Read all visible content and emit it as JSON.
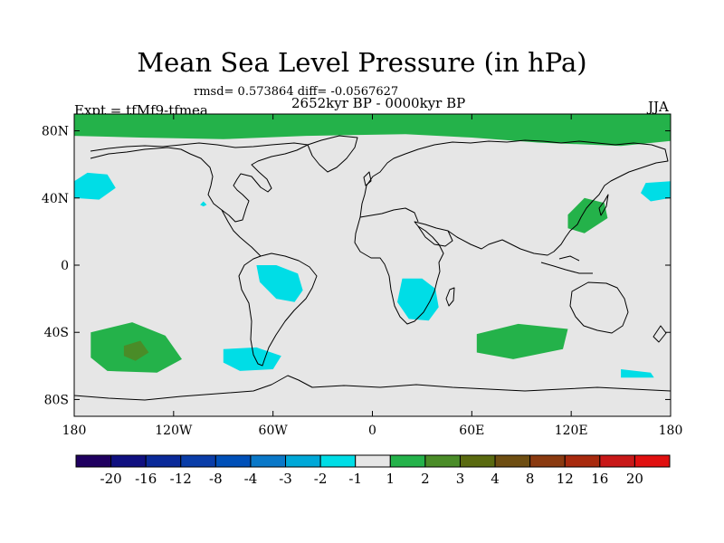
{
  "title": "Mean Sea Level Pressure (in hPa)",
  "stats": "rmsd= 0.573864 diff= -0.0567627",
  "period": "2652kyr BP - 0000kyr BP",
  "experiment": "Expt = tfMf9-tfmea",
  "season": "JJA",
  "chart_data": {
    "type": "map",
    "projection": "cylindrical-equidistant",
    "lon_range": [
      -180,
      180
    ],
    "lat_range": [
      -90,
      90
    ],
    "x_ticks": [
      {
        "lon": -180,
        "label": "180"
      },
      {
        "lon": -120,
        "label": "120W"
      },
      {
        "lon": -60,
        "label": "60W"
      },
      {
        "lon": 0,
        "label": "0"
      },
      {
        "lon": 60,
        "label": "60E"
      },
      {
        "lon": 120,
        "label": "120E"
      },
      {
        "lon": 180,
        "label": "180"
      }
    ],
    "y_ticks": [
      {
        "lat": 80,
        "label": "80N"
      },
      {
        "lat": 40,
        "label": "40N"
      },
      {
        "lat": 0,
        "label": "0"
      },
      {
        "lat": -40,
        "label": "40S"
      },
      {
        "lat": -80,
        "label": "80S"
      }
    ],
    "colorbar": {
      "labels": [
        "-20",
        "-16",
        "-12",
        "-8",
        "-4",
        "-3",
        "-2",
        "-1",
        "1",
        "2",
        "3",
        "4",
        "8",
        "12",
        "16",
        "20"
      ],
      "colors": [
        "#200060",
        "#101080",
        "#0a2a99",
        "#0a3da8",
        "#0050b8",
        "#0a78c8",
        "#00a8d8",
        "#00dde6",
        "#e6e6e6",
        "#24b24a",
        "#4a8c28",
        "#5a6a10",
        "#6e4e12",
        "#8a3a10",
        "#a82a0e",
        "#c81818",
        "#e01010"
      ]
    },
    "regions": [
      {
        "name": "arctic-positive",
        "bin": "1 to 2",
        "color": "#24b24a",
        "points": [
          [
            -180,
            90
          ],
          [
            180,
            90
          ],
          [
            180,
            74
          ],
          [
            150,
            71
          ],
          [
            100,
            73
          ],
          [
            60,
            76
          ],
          [
            20,
            78
          ],
          [
            -40,
            77
          ],
          [
            -90,
            75
          ],
          [
            -140,
            76
          ],
          [
            -180,
            77
          ]
        ]
      },
      {
        "name": "n-pacific-east-negative",
        "bin": "-2 to -1",
        "color": "#00dde6",
        "points": [
          [
            -180,
            50
          ],
          [
            -172,
            55
          ],
          [
            -160,
            54
          ],
          [
            -155,
            46
          ],
          [
            -165,
            39
          ],
          [
            -180,
            40
          ]
        ]
      },
      {
        "name": "n-pacific-west-negative",
        "bin": "-2 to -1",
        "color": "#00dde6",
        "points": [
          [
            180,
            50
          ],
          [
            165,
            49
          ],
          [
            162,
            43
          ],
          [
            168,
            38
          ],
          [
            180,
            40
          ]
        ]
      },
      {
        "name": "n-america-small-negative",
        "bin": "-2 to -1",
        "color": "#00dde6",
        "points": [
          [
            -102,
            38
          ],
          [
            -100,
            36
          ],
          [
            -102,
            35
          ],
          [
            -104,
            36
          ]
        ]
      },
      {
        "name": "south-america-negative",
        "bin": "-2 to -1",
        "color": "#00dde6",
        "points": [
          [
            -70,
            0
          ],
          [
            -58,
            0
          ],
          [
            -45,
            -5
          ],
          [
            -42,
            -15
          ],
          [
            -47,
            -22
          ],
          [
            -58,
            -20
          ],
          [
            -68,
            -10
          ]
        ]
      },
      {
        "name": "patagonia-negative",
        "bin": "-2 to -1",
        "color": "#00dde6",
        "points": [
          [
            -90,
            -50
          ],
          [
            -70,
            -49
          ],
          [
            -55,
            -54
          ],
          [
            -60,
            -62
          ],
          [
            -80,
            -63
          ],
          [
            -90,
            -58
          ]
        ]
      },
      {
        "name": "southern-africa-negative",
        "bin": "-2 to -1",
        "color": "#00dde6",
        "points": [
          [
            18,
            -8
          ],
          [
            30,
            -8
          ],
          [
            38,
            -14
          ],
          [
            40,
            -25
          ],
          [
            34,
            -33
          ],
          [
            22,
            -32
          ],
          [
            15,
            -22
          ]
        ]
      },
      {
        "name": "southern-ocean-east-negative",
        "bin": "-2 to -1",
        "color": "#00dde6",
        "points": [
          [
            150,
            -62
          ],
          [
            168,
            -64
          ],
          [
            170,
            -67
          ],
          [
            150,
            -67
          ]
        ]
      },
      {
        "name": "s-pacific-positive",
        "bin": "1 to 2",
        "color": "#24b24a",
        "points": [
          [
            -170,
            -40
          ],
          [
            -145,
            -34
          ],
          [
            -125,
            -42
          ],
          [
            -115,
            -56
          ],
          [
            -130,
            -64
          ],
          [
            -160,
            -63
          ],
          [
            -170,
            -55
          ]
        ]
      },
      {
        "name": "s-pacific-core-positive",
        "bin": "2 to 3",
        "color": "#4a8c28",
        "points": [
          [
            -150,
            -48
          ],
          [
            -140,
            -45
          ],
          [
            -135,
            -52
          ],
          [
            -143,
            -57
          ],
          [
            -150,
            -54
          ]
        ]
      },
      {
        "name": "s-indian-positive",
        "bin": "1 to 2",
        "color": "#24b24a",
        "points": [
          [
            63,
            -41
          ],
          [
            88,
            -35
          ],
          [
            118,
            -38
          ],
          [
            115,
            -50
          ],
          [
            85,
            -56
          ],
          [
            63,
            -52
          ]
        ]
      },
      {
        "name": "japan-positive",
        "bin": "1 to 2",
        "color": "#24b24a",
        "points": [
          [
            118,
            30
          ],
          [
            128,
            40
          ],
          [
            140,
            37
          ],
          [
            142,
            28
          ],
          [
            128,
            19
          ],
          [
            118,
            22
          ]
        ]
      }
    ]
  }
}
